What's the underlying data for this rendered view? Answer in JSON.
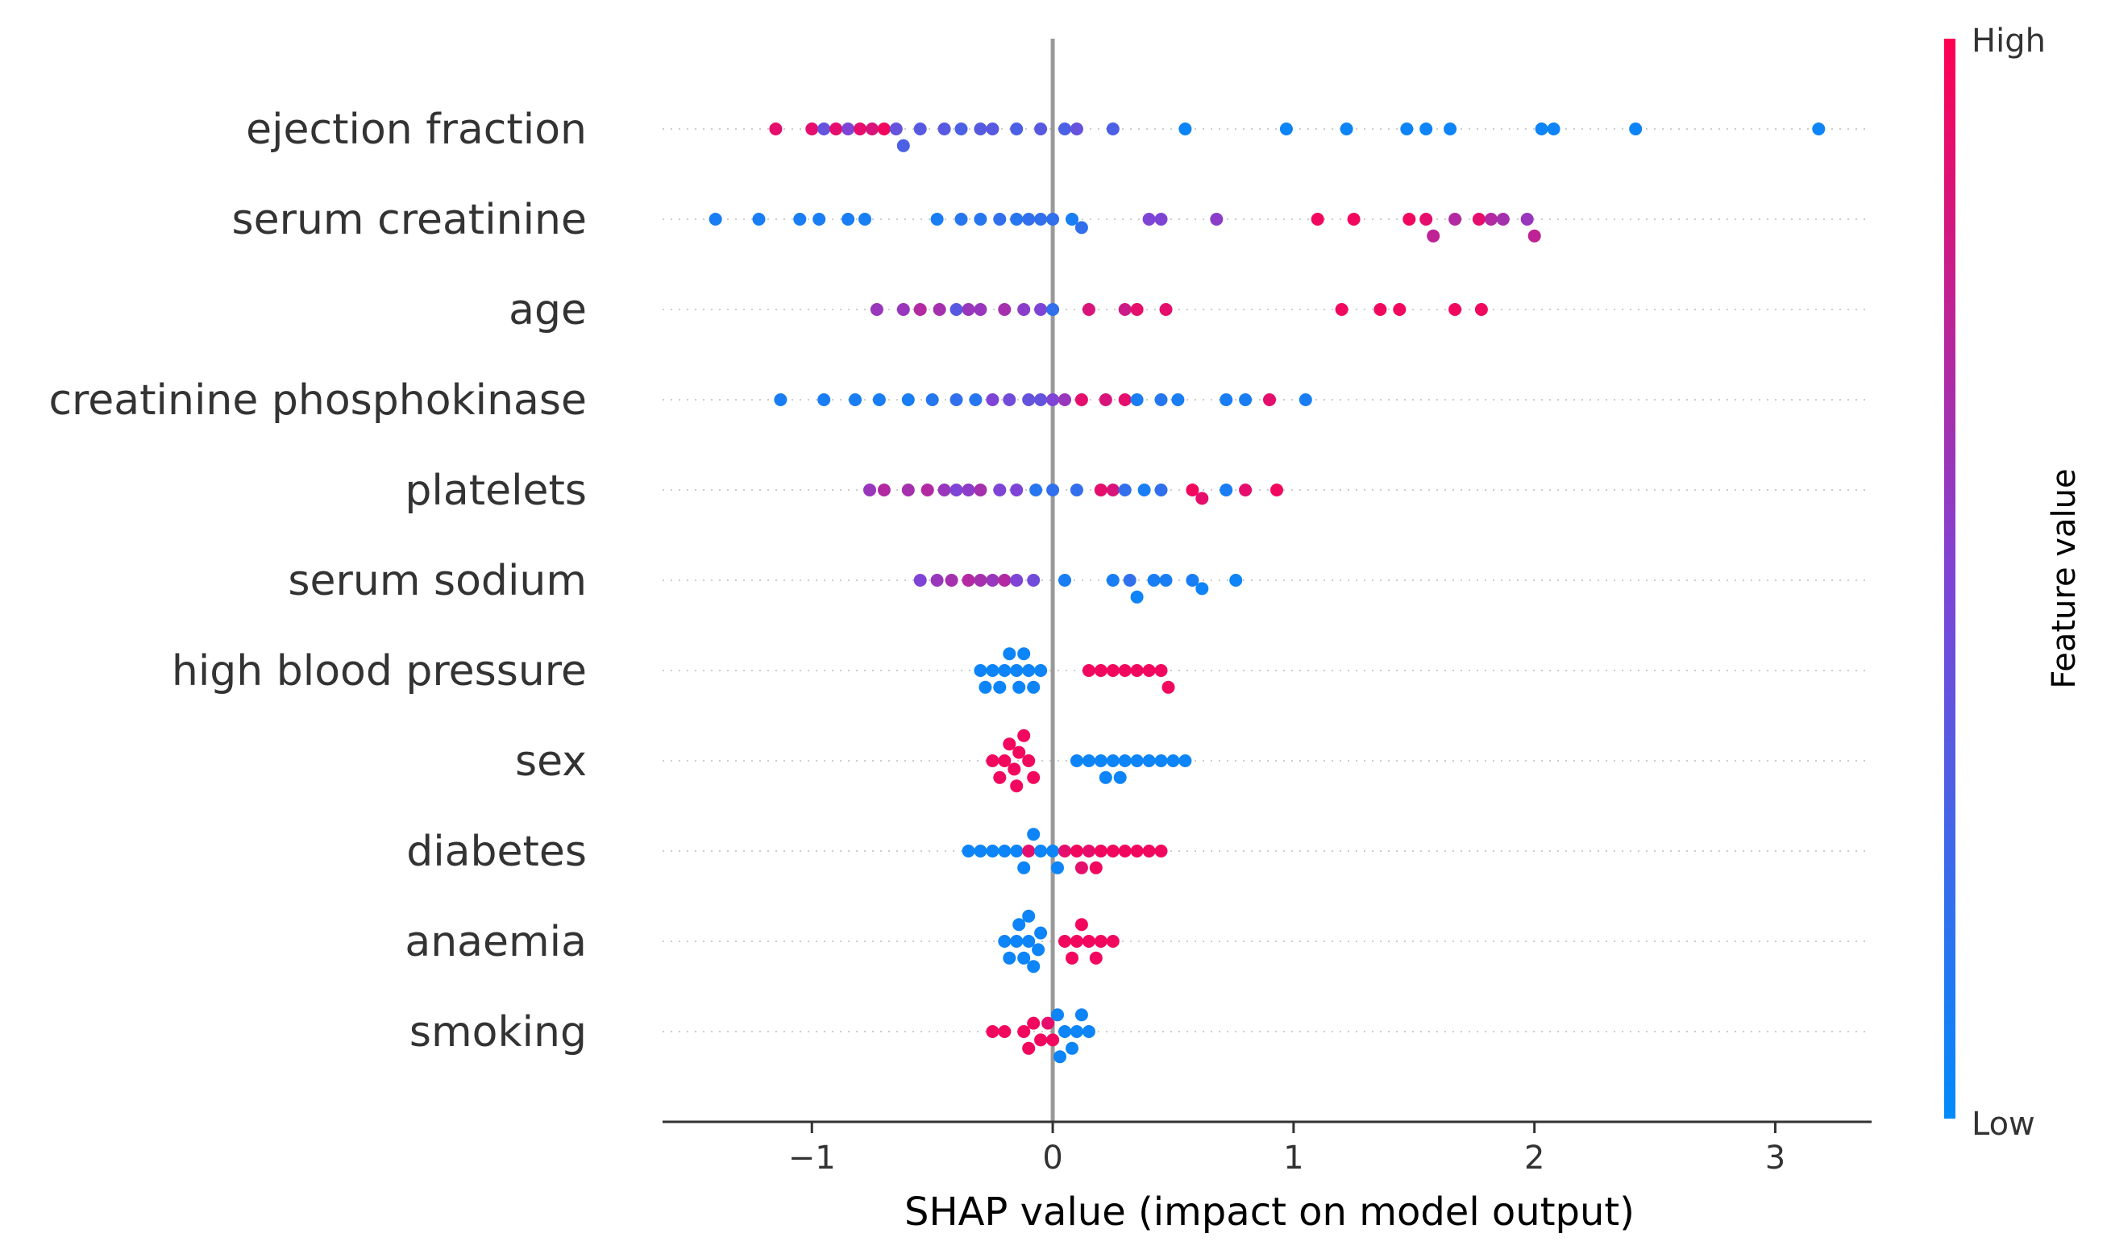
{
  "chart_data": {
    "type": "scatter",
    "subtype": "shap-beeswarm",
    "xlabel": "SHAP value (impact on model output)",
    "xlim": [
      -1.62,
      3.4
    ],
    "xticks": [
      -1,
      0,
      1,
      2,
      3
    ],
    "xtick_labels": [
      "−1",
      "0",
      "1",
      "2",
      "3"
    ],
    "zero_line": true,
    "grid": false,
    "colorbar": {
      "title": "Feature value",
      "high_label": "High",
      "low_label": "Low",
      "low_color": "#008bfb",
      "mid_color": "#7e44d6",
      "high_color": "#ff0052",
      "placement": "right"
    },
    "features": [
      {
        "name": "ejection fraction",
        "points": [
          [
            -1.15,
            0.9
          ],
          [
            -1.0,
            0.9
          ],
          [
            -0.95,
            0.4
          ],
          [
            -0.9,
            0.9
          ],
          [
            -0.85,
            0.5
          ],
          [
            -0.8,
            0.9
          ],
          [
            -0.75,
            0.85
          ],
          [
            -0.7,
            0.95
          ],
          [
            -0.65,
            0.4
          ],
          [
            -0.62,
            0.3
          ],
          [
            -0.55,
            0.35
          ],
          [
            -0.45,
            0.35
          ],
          [
            -0.38,
            0.3
          ],
          [
            -0.3,
            0.35
          ],
          [
            -0.25,
            0.35
          ],
          [
            -0.15,
            0.3
          ],
          [
            -0.05,
            0.35
          ],
          [
            0.05,
            0.3
          ],
          [
            0.1,
            0.4
          ],
          [
            0.25,
            0.3
          ],
          [
            0.55,
            0.05
          ],
          [
            0.97,
            0.05
          ],
          [
            1.22,
            0.05
          ],
          [
            1.47,
            0.05
          ],
          [
            1.55,
            0.05
          ],
          [
            1.65,
            0.05
          ],
          [
            2.03,
            0.05
          ],
          [
            2.08,
            0.05
          ],
          [
            2.42,
            0.05
          ],
          [
            3.18,
            0.05
          ]
        ]
      },
      {
        "name": "serum creatinine",
        "points": [
          [
            -1.4,
            0.1
          ],
          [
            -1.22,
            0.1
          ],
          [
            -1.05,
            0.1
          ],
          [
            -0.97,
            0.1
          ],
          [
            -0.85,
            0.1
          ],
          [
            -0.78,
            0.1
          ],
          [
            -0.48,
            0.1
          ],
          [
            -0.38,
            0.15
          ],
          [
            -0.3,
            0.15
          ],
          [
            -0.22,
            0.2
          ],
          [
            -0.15,
            0.15
          ],
          [
            -0.1,
            0.2
          ],
          [
            -0.05,
            0.2
          ],
          [
            0.0,
            0.2
          ],
          [
            0.08,
            0.1
          ],
          [
            0.12,
            0.2
          ],
          [
            0.4,
            0.5
          ],
          [
            0.45,
            0.5
          ],
          [
            0.68,
            0.55
          ],
          [
            1.1,
            0.95
          ],
          [
            1.25,
            0.95
          ],
          [
            1.48,
            0.95
          ],
          [
            1.55,
            0.9
          ],
          [
            1.58,
            0.75
          ],
          [
            1.67,
            0.7
          ],
          [
            1.77,
            0.9
          ],
          [
            1.82,
            0.7
          ],
          [
            1.87,
            0.65
          ],
          [
            1.97,
            0.6
          ],
          [
            2.0,
            0.75
          ]
        ]
      },
      {
        "name": "age",
        "points": [
          [
            -0.73,
            0.6
          ],
          [
            -0.62,
            0.6
          ],
          [
            -0.55,
            0.7
          ],
          [
            -0.47,
            0.65
          ],
          [
            -0.4,
            0.35
          ],
          [
            -0.35,
            0.6
          ],
          [
            -0.3,
            0.6
          ],
          [
            -0.2,
            0.65
          ],
          [
            -0.12,
            0.55
          ],
          [
            -0.05,
            0.5
          ],
          [
            0.0,
            0.2
          ],
          [
            0.15,
            0.85
          ],
          [
            0.3,
            0.8
          ],
          [
            0.35,
            0.9
          ],
          [
            0.47,
            0.9
          ],
          [
            1.2,
            0.95
          ],
          [
            1.36,
            0.95
          ],
          [
            1.44,
            0.95
          ],
          [
            1.67,
            0.95
          ],
          [
            1.78,
            0.95
          ]
        ]
      },
      {
        "name": "creatinine phosphokinase",
        "points": [
          [
            -1.13,
            0.1
          ],
          [
            -0.95,
            0.1
          ],
          [
            -0.82,
            0.1
          ],
          [
            -0.72,
            0.1
          ],
          [
            -0.6,
            0.1
          ],
          [
            -0.5,
            0.15
          ],
          [
            -0.4,
            0.2
          ],
          [
            -0.32,
            0.15
          ],
          [
            -0.25,
            0.5
          ],
          [
            -0.18,
            0.45
          ],
          [
            -0.1,
            0.4
          ],
          [
            -0.05,
            0.4
          ],
          [
            0.0,
            0.5
          ],
          [
            0.05,
            0.6
          ],
          [
            0.12,
            0.9
          ],
          [
            0.22,
            0.85
          ],
          [
            0.3,
            0.9
          ],
          [
            0.35,
            0.1
          ],
          [
            0.45,
            0.15
          ],
          [
            0.52,
            0.1
          ],
          [
            0.72,
            0.1
          ],
          [
            0.8,
            0.1
          ],
          [
            0.9,
            0.9
          ],
          [
            1.05,
            0.1
          ]
        ]
      },
      {
        "name": "platelets",
        "points": [
          [
            -0.76,
            0.6
          ],
          [
            -0.7,
            0.7
          ],
          [
            -0.6,
            0.65
          ],
          [
            -0.52,
            0.7
          ],
          [
            -0.45,
            0.6
          ],
          [
            -0.4,
            0.5
          ],
          [
            -0.35,
            0.55
          ],
          [
            -0.3,
            0.65
          ],
          [
            -0.22,
            0.5
          ],
          [
            -0.15,
            0.5
          ],
          [
            -0.07,
            0.15
          ],
          [
            0.0,
            0.2
          ],
          [
            0.1,
            0.2
          ],
          [
            0.2,
            0.9
          ],
          [
            0.25,
            0.85
          ],
          [
            0.3,
            0.2
          ],
          [
            0.38,
            0.1
          ],
          [
            0.45,
            0.2
          ],
          [
            0.58,
            0.95
          ],
          [
            0.62,
            0.9
          ],
          [
            0.72,
            0.1
          ],
          [
            0.8,
            0.9
          ],
          [
            0.93,
            0.95
          ]
        ]
      },
      {
        "name": "serum sodium",
        "points": [
          [
            -0.55,
            0.5
          ],
          [
            -0.48,
            0.6
          ],
          [
            -0.42,
            0.65
          ],
          [
            -0.35,
            0.7
          ],
          [
            -0.3,
            0.65
          ],
          [
            -0.25,
            0.6
          ],
          [
            -0.2,
            0.7
          ],
          [
            -0.15,
            0.5
          ],
          [
            -0.08,
            0.45
          ],
          [
            0.05,
            0.1
          ],
          [
            0.25,
            0.1
          ],
          [
            0.32,
            0.2
          ],
          [
            0.35,
            0.05
          ],
          [
            0.42,
            0.1
          ],
          [
            0.47,
            0.1
          ],
          [
            0.58,
            0.1
          ],
          [
            0.62,
            0.05
          ],
          [
            0.76,
            0.05
          ]
        ]
      },
      {
        "name": "high blood pressure",
        "points": [
          [
            -0.3,
            0.05
          ],
          [
            -0.25,
            0.05
          ],
          [
            -0.2,
            0.05
          ],
          [
            -0.15,
            0.05
          ],
          [
            -0.1,
            0.05
          ],
          [
            -0.22,
            0.05
          ],
          [
            -0.18,
            0.05
          ],
          [
            -0.12,
            0.05
          ],
          [
            -0.08,
            0.05
          ],
          [
            -0.05,
            0.05
          ],
          [
            -0.28,
            0.05
          ],
          [
            -0.14,
            0.05
          ],
          [
            0.15,
            0.95
          ],
          [
            0.2,
            0.95
          ],
          [
            0.25,
            0.95
          ],
          [
            0.3,
            0.95
          ],
          [
            0.35,
            0.95
          ],
          [
            0.4,
            0.95
          ],
          [
            0.45,
            0.95
          ],
          [
            0.48,
            0.95
          ]
        ]
      },
      {
        "name": "sex",
        "points": [
          [
            -0.25,
            0.95
          ],
          [
            -0.2,
            0.95
          ],
          [
            -0.15,
            0.95
          ],
          [
            -0.1,
            0.95
          ],
          [
            -0.18,
            0.95
          ],
          [
            -0.12,
            0.95
          ],
          [
            -0.22,
            0.95
          ],
          [
            -0.14,
            0.95
          ],
          [
            -0.08,
            0.95
          ],
          [
            -0.16,
            0.95
          ],
          [
            0.1,
            0.05
          ],
          [
            0.15,
            0.05
          ],
          [
            0.2,
            0.05
          ],
          [
            0.25,
            0.05
          ],
          [
            0.3,
            0.05
          ],
          [
            0.35,
            0.05
          ],
          [
            0.4,
            0.05
          ],
          [
            0.45,
            0.05
          ],
          [
            0.5,
            0.05
          ],
          [
            0.55,
            0.05
          ],
          [
            0.22,
            0.05
          ],
          [
            0.28,
            0.05
          ]
        ]
      },
      {
        "name": "diabetes",
        "points": [
          [
            -0.35,
            0.05
          ],
          [
            -0.3,
            0.05
          ],
          [
            -0.25,
            0.05
          ],
          [
            -0.2,
            0.05
          ],
          [
            -0.15,
            0.05
          ],
          [
            -0.1,
            0.9
          ],
          [
            -0.05,
            0.05
          ],
          [
            0.0,
            0.05
          ],
          [
            0.05,
            0.9
          ],
          [
            0.1,
            0.95
          ],
          [
            0.15,
            0.9
          ],
          [
            0.2,
            0.95
          ],
          [
            0.25,
            0.95
          ],
          [
            0.3,
            0.95
          ],
          [
            0.35,
            0.95
          ],
          [
            0.4,
            0.95
          ],
          [
            0.45,
            0.95
          ],
          [
            -0.12,
            0.05
          ],
          [
            -0.08,
            0.05
          ],
          [
            0.02,
            0.05
          ],
          [
            0.12,
            0.9
          ],
          [
            0.18,
            0.95
          ]
        ]
      },
      {
        "name": "anaemia",
        "points": [
          [
            -0.2,
            0.05
          ],
          [
            -0.15,
            0.05
          ],
          [
            -0.1,
            0.05
          ],
          [
            -0.05,
            0.05
          ],
          [
            -0.12,
            0.05
          ],
          [
            -0.08,
            0.05
          ],
          [
            -0.18,
            0.05
          ],
          [
            -0.14,
            0.05
          ],
          [
            -0.06,
            0.05
          ],
          [
            -0.1,
            0.05
          ],
          [
            0.05,
            0.95
          ],
          [
            0.1,
            0.95
          ],
          [
            0.15,
            0.95
          ],
          [
            0.2,
            0.95
          ],
          [
            0.25,
            0.95
          ],
          [
            0.08,
            0.95
          ],
          [
            0.12,
            0.95
          ],
          [
            0.18,
            0.95
          ]
        ]
      },
      {
        "name": "smoking",
        "points": [
          [
            -0.25,
            0.95
          ],
          [
            -0.2,
            0.95
          ],
          [
            -0.12,
            0.95
          ],
          [
            -0.08,
            0.95
          ],
          [
            -0.05,
            0.95
          ],
          [
            0.0,
            0.95
          ],
          [
            0.02,
            0.05
          ],
          [
            0.05,
            0.05
          ],
          [
            0.08,
            0.05
          ],
          [
            0.12,
            0.05
          ],
          [
            0.15,
            0.05
          ],
          [
            -0.02,
            0.9
          ],
          [
            0.03,
            0.05
          ],
          [
            0.1,
            0.05
          ],
          [
            -0.1,
            0.95
          ]
        ]
      }
    ]
  }
}
